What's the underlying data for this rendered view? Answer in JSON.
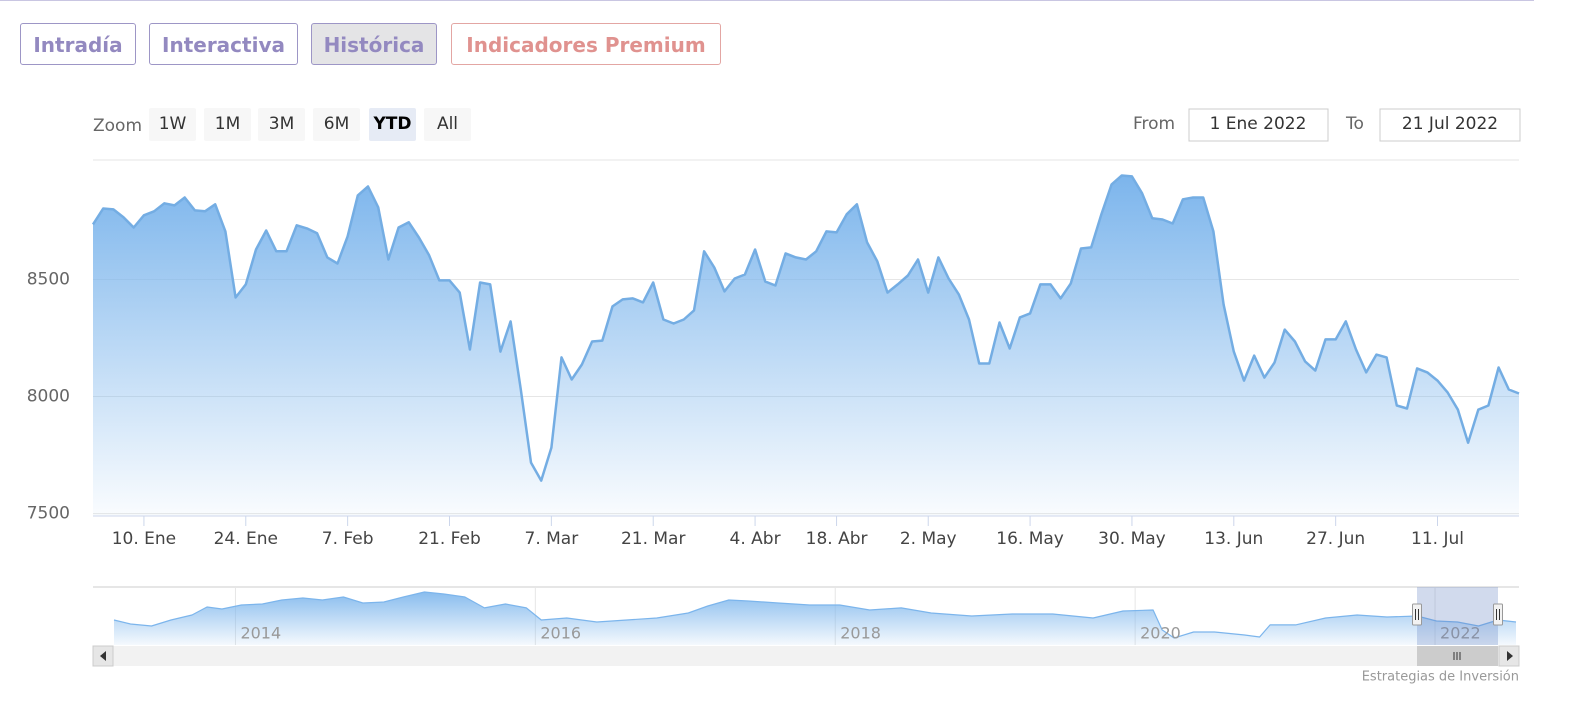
{
  "tabs": [
    "Intradía",
    "Interactiva",
    "Histórica",
    "Indicadores Premium"
  ],
  "active_tab": 2,
  "range_selector": {
    "label": "Zoom",
    "buttons": [
      "1W",
      "1M",
      "3M",
      "6M",
      "YTD",
      "All"
    ],
    "selected": 4
  },
  "date_inputs": {
    "from_label": "From",
    "from": "1 Ene 2022",
    "to_label": "To",
    "to": "21 Jul 2022"
  },
  "chart_data": [
    {
      "type": "area",
      "color": "#7cb5ec",
      "grid": true,
      "values": [
        8735,
        8803,
        8799,
        8765,
        8722,
        8774,
        8791,
        8825,
        8816,
        8850,
        8795,
        8791,
        8821,
        8705,
        8423,
        8479,
        8628,
        8709,
        8620,
        8620,
        8731,
        8718,
        8697,
        8594,
        8568,
        8684,
        8859,
        8897,
        8808,
        8585,
        8722,
        8744,
        8679,
        8603,
        8496,
        8496,
        8444,
        8201,
        8487,
        8479,
        8192,
        8321,
        8030,
        7718,
        7641,
        7782,
        8167,
        8073,
        8137,
        8235,
        8239,
        8385,
        8415,
        8419,
        8402,
        8487,
        8329,
        8312,
        8329,
        8368,
        8620,
        8551,
        8449,
        8504,
        8521,
        8628,
        8491,
        8474,
        8611,
        8594,
        8585,
        8620,
        8705,
        8701,
        8778,
        8821,
        8658,
        8577,
        8444,
        8479,
        8517,
        8585,
        8444,
        8594,
        8504,
        8436,
        8329,
        8141,
        8141,
        8316,
        8205,
        8338,
        8355,
        8479,
        8479,
        8419,
        8483,
        8632,
        8637,
        8778,
        8906,
        8944,
        8940,
        8868,
        8761,
        8756,
        8739,
        8842,
        8850,
        8850,
        8705,
        8393,
        8192,
        8068,
        8175,
        8081,
        8145,
        8286,
        8235,
        8150,
        8111,
        8244,
        8244,
        8321,
        8201,
        8103,
        8179,
        8167,
        7962,
        7949,
        8120,
        8103,
        8068,
        8017,
        7944,
        7803,
        7944,
        7962,
        8124,
        8030,
        8013
      ],
      "xlim": [
        0,
        140
      ],
      "xticks": [
        {
          "value": 5,
          "label": "10. Ene"
        },
        {
          "value": 15,
          "label": "24. Ene"
        },
        {
          "value": 25,
          "label": "7. Feb"
        },
        {
          "value": 35,
          "label": "21. Feb"
        },
        {
          "value": 45,
          "label": "7. Mar"
        },
        {
          "value": 55,
          "label": "21. Mar"
        },
        {
          "value": 65,
          "label": "4. Abr"
        },
        {
          "value": 73,
          "label": "18. Abr"
        },
        {
          "value": 82,
          "label": "2. May"
        },
        {
          "value": 92,
          "label": "16. May"
        },
        {
          "value": 102,
          "label": "30. May"
        },
        {
          "value": 112,
          "label": "13. Jun"
        },
        {
          "value": 122,
          "label": "27. Jun"
        },
        {
          "value": 132,
          "label": "11. Jul"
        }
      ],
      "ylim": [
        7490,
        9010
      ],
      "yticks": [
        7500,
        8000,
        8500
      ]
    },
    {
      "type": "area",
      "color": "#7cb5ec",
      "x": [
        2013.19,
        2013.3,
        2013.44,
        2013.57,
        2013.71,
        2013.81,
        2013.91,
        2014.04,
        2014.18,
        2014.31,
        2014.45,
        2014.58,
        2014.72,
        2014.85,
        2014.99,
        2015.12,
        2015.26,
        2015.39,
        2015.53,
        2015.66,
        2015.8,
        2015.94,
        2016.04,
        2016.21,
        2016.41,
        2016.61,
        2016.81,
        2017.02,
        2017.15,
        2017.29,
        2017.42,
        2017.62,
        2017.83,
        2018.03,
        2018.23,
        2018.44,
        2018.64,
        2018.91,
        2019.18,
        2019.45,
        2019.72,
        2019.92,
        2020.12,
        2020.18,
        2020.26,
        2020.39,
        2020.53,
        2020.73,
        2020.83,
        2020.9,
        2021.07,
        2021.27,
        2021.48,
        2021.68,
        2021.88,
        2022.01,
        2022.15,
        2022.29,
        2022.42,
        2022.54
      ],
      "values": [
        8690,
        8280,
        8070,
        8690,
        9210,
        10040,
        9830,
        10250,
        10350,
        10760,
        10970,
        10760,
        11070,
        10450,
        10560,
        11070,
        11590,
        11390,
        11070,
        9940,
        10350,
        9940,
        8690,
        8900,
        8480,
        8690,
        8900,
        9420,
        10140,
        10760,
        10660,
        10450,
        10250,
        10250,
        9730,
        9940,
        9420,
        9110,
        9310,
        9310,
        8900,
        9620,
        9730,
        7660,
        6830,
        7450,
        7450,
        7140,
        6930,
        8180,
        8180,
        8900,
        9210,
        9000,
        9110,
        8590,
        8480,
        8070,
        8690,
        8480
      ],
      "xlim": [
        2013.05,
        2022.56
      ],
      "xticks": [
        2014,
        2016,
        2018,
        2020,
        2022
      ],
      "ylim": [
        6100,
        11800
      ]
    }
  ],
  "credit": "Estrategias de Inversión"
}
